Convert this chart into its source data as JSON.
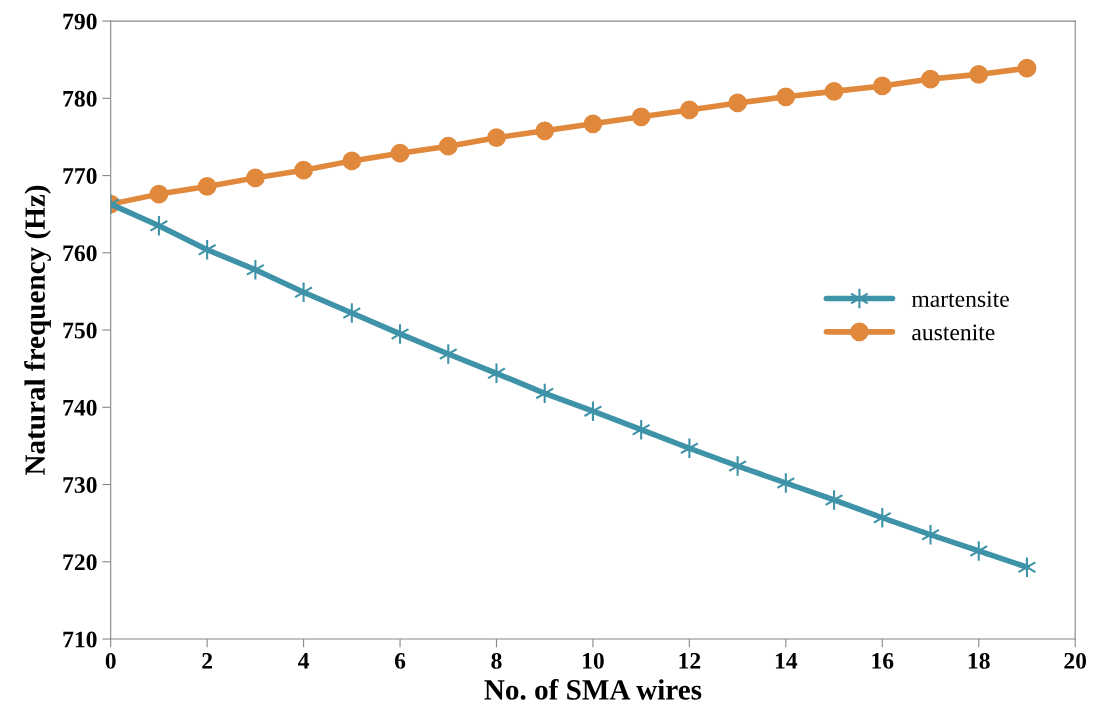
{
  "chart_data": {
    "type": "line",
    "xlabel": "No. of SMA wires",
    "ylabel": "Natural frequency (Hz)",
    "x": [
      0,
      1,
      2,
      3,
      4,
      5,
      6,
      7,
      8,
      9,
      10,
      11,
      12,
      13,
      14,
      15,
      16,
      17,
      18,
      19
    ],
    "series": [
      {
        "name": "martensite",
        "color": "#3f93a8",
        "marker": "cross",
        "values": [
          766.3,
          763.5,
          760.4,
          757.8,
          754.9,
          752.2,
          749.5,
          746.9,
          744.4,
          741.8,
          739.5,
          737.1,
          734.7,
          732.4,
          730.2,
          728.0,
          725.7,
          723.5,
          721.4,
          719.3
        ]
      },
      {
        "name": "austenite",
        "color": "#e0883c",
        "marker": "circle",
        "values": [
          766.3,
          767.6,
          768.6,
          769.7,
          770.7,
          771.9,
          772.9,
          773.8,
          774.9,
          775.8,
          776.7,
          777.6,
          778.5,
          779.4,
          780.2,
          780.9,
          781.6,
          782.5,
          783.1,
          783.9
        ]
      }
    ],
    "xlim": [
      0,
      20
    ],
    "xticks": [
      0,
      2,
      4,
      6,
      8,
      10,
      12,
      14,
      16,
      18,
      20
    ],
    "ylim": [
      710,
      790
    ],
    "yticks": [
      710,
      720,
      730,
      740,
      750,
      760,
      770,
      780,
      790
    ],
    "grid": false,
    "legend": "right",
    "line_style": "solid"
  }
}
